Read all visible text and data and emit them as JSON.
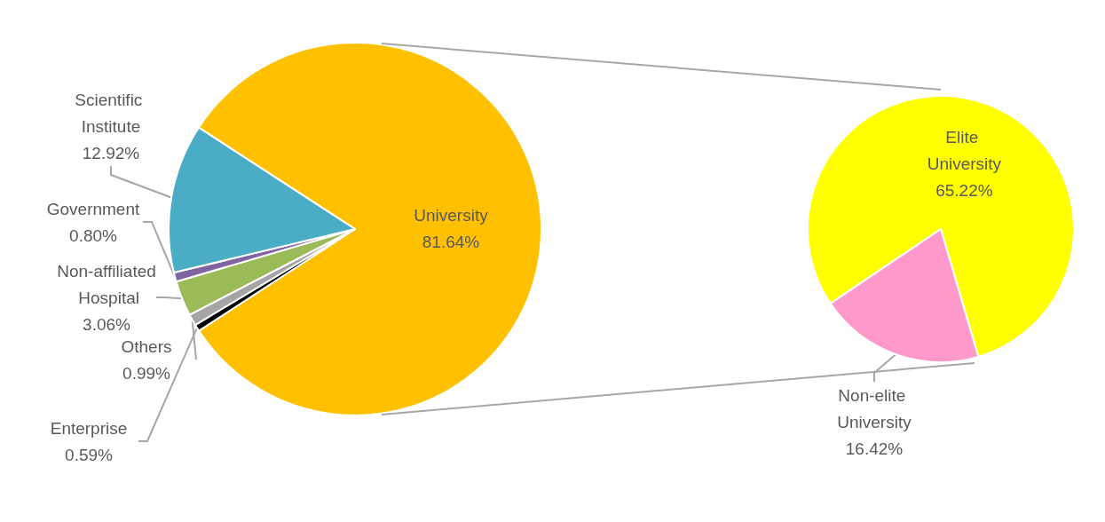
{
  "chart_data": [
    {
      "type": "pie",
      "categories": [
        "University",
        "Enterprise",
        "Others",
        "Non-affiliated Hospital",
        "Government",
        "Scientific Institute"
      ],
      "values": [
        81.64,
        0.59,
        0.99,
        3.06,
        0.8,
        12.92
      ],
      "value_labels": [
        "81.64%",
        "0.59%",
        "0.99%",
        "3.06%",
        "0.80%",
        "12.92%"
      ],
      "colors": [
        "#ffc000",
        "#000000",
        "#a5a5a5",
        "#9bbb59",
        "#8064a2",
        "#4bacc6"
      ]
    },
    {
      "type": "pie",
      "categories": [
        "Elite University",
        "Non-elite University"
      ],
      "values": [
        65.22,
        16.42
      ],
      "value_labels": [
        "65.22%",
        "16.42%"
      ],
      "colors": [
        "#ffff00",
        "#ff99cc"
      ]
    }
  ]
}
